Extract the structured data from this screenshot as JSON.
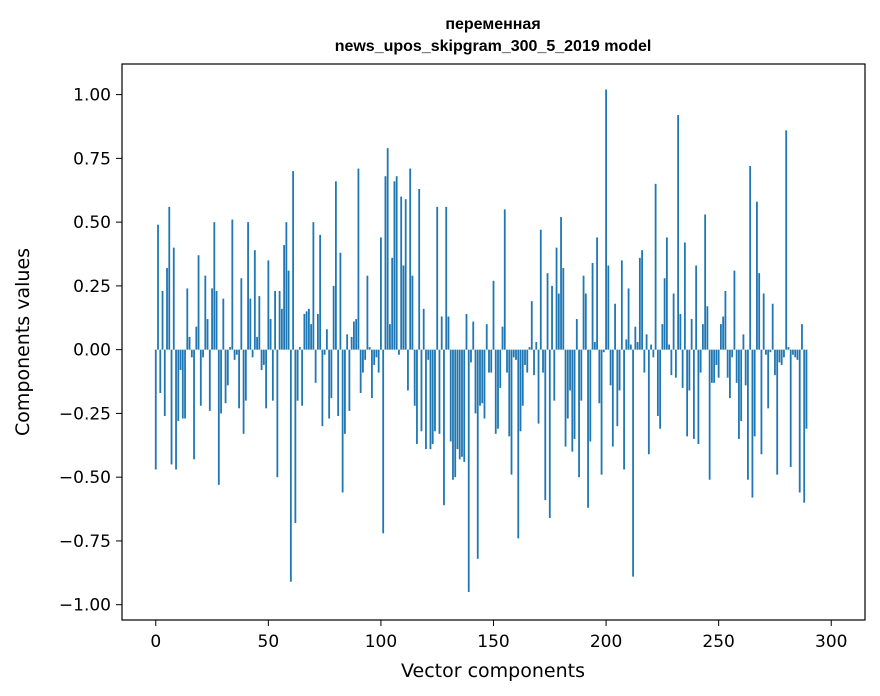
{
  "chart_data": {
    "type": "bar",
    "title": [
      "переменная",
      "news_upos_skipgram_300_5_2019 model"
    ],
    "xlabel": "Vector components",
    "ylabel": "Components values",
    "xlim": [
      -15,
      315
    ],
    "ylim": [
      -1.06,
      1.12
    ],
    "xticks": [
      0,
      50,
      100,
      150,
      200,
      250,
      300
    ],
    "xtick_labels": [
      "0",
      "50",
      "100",
      "150",
      "200",
      "250",
      "300"
    ],
    "yticks": [
      1.0,
      0.75,
      0.5,
      0.25,
      0.0,
      -0.25,
      -0.5,
      -0.75,
      -1.0
    ],
    "ytick_labels": [
      "1.00",
      "0.75",
      "0.50",
      "0.25",
      "0.00",
      "−0.25",
      "−0.50",
      "−0.75",
      "−1.00"
    ],
    "bar_color": "#1f77b4",
    "values": [
      -0.47,
      0.49,
      -0.17,
      0.23,
      -0.26,
      0.32,
      0.56,
      -0.45,
      0.4,
      -0.47,
      -0.28,
      -0.08,
      -0.27,
      -0.27,
      0.24,
      0.05,
      -0.03,
      -0.43,
      0.09,
      0.37,
      -0.22,
      -0.03,
      0.29,
      0.12,
      -0.24,
      0.24,
      0.5,
      0.23,
      -0.53,
      -0.25,
      0.2,
      -0.21,
      -0.14,
      0.01,
      0.51,
      -0.04,
      -0.02,
      -0.23,
      0.28,
      -0.33,
      -0.2,
      0.5,
      0.2,
      -0.03,
      0.39,
      0.05,
      0.21,
      -0.08,
      -0.06,
      -0.23,
      0.35,
      0.12,
      -0.2,
      0.23,
      -0.5,
      0.23,
      0.16,
      0.41,
      0.5,
      0.31,
      -0.91,
      0.7,
      -0.68,
      -0.2,
      0.01,
      -0.22,
      0.14,
      0.15,
      0.16,
      0.1,
      0.5,
      -0.13,
      0.14,
      0.45,
      -0.3,
      -0.02,
      0.08,
      -0.27,
      -0.19,
      0.25,
      0.66,
      -0.26,
      0.38,
      -0.56,
      -0.33,
      0.06,
      -0.24,
      0.05,
      0.11,
      0.12,
      0.71,
      -0.17,
      -0.09,
      -0.04,
      0.29,
      0.01,
      -0.19,
      -0.06,
      -0.03,
      -0.09,
      0.44,
      -0.72,
      0.68,
      0.79,
      0.1,
      0.36,
      0.66,
      0.68,
      -0.02,
      0.6,
      0.33,
      0.59,
      -0.16,
      0.71,
      0.29,
      -0.22,
      -0.37,
      0.63,
      -0.32,
      0.16,
      -0.39,
      -0.04,
      -0.39,
      -0.37,
      -0.32,
      0.56,
      -0.33,
      0.13,
      -0.61,
      0.56,
      0.13,
      -0.36,
      -0.51,
      -0.5,
      -0.39,
      -0.43,
      -0.42,
      -0.44,
      0.14,
      -0.95,
      -0.05,
      0.11,
      -0.25,
      -0.82,
      -0.22,
      -0.21,
      -0.27,
      0.1,
      -0.09,
      -0.09,
      0.27,
      -0.33,
      -0.31,
      -0.15,
      0.09,
      0.55,
      -0.09,
      -0.34,
      -0.49,
      -0.03,
      -0.04,
      -0.74,
      -0.32,
      -0.22,
      -0.06,
      -0.09,
      0.01,
      0.19,
      -0.1,
      0.03,
      -0.29,
      0.47,
      -0.09,
      -0.59,
      0.3,
      -0.66,
      0.25,
      -0.2,
      0.4,
      0.22,
      0.52,
      0.32,
      -0.38,
      -0.27,
      -0.16,
      -0.4,
      -0.35,
      0.12,
      -0.5,
      -0.2,
      0.29,
      0.22,
      -0.62,
      -0.36,
      0.34,
      0.03,
      0.44,
      -0.21,
      -0.49,
      -0.01,
      1.02,
      0.33,
      -0.14,
      -0.38,
      0.18,
      -0.3,
      -0.16,
      0.35,
      -0.47,
      0.04,
      0.24,
      0.02,
      -0.89,
      0.09,
      0.03,
      0.36,
      0.39,
      -0.09,
      0.06,
      -0.41,
      0.02,
      -0.03,
      0.65,
      -0.26,
      -0.31,
      0.1,
      0.28,
      0.44,
      0.02,
      -0.1,
      0.22,
      -0.11,
      0.92,
      0.14,
      -0.15,
      0.42,
      -0.34,
      -0.16,
      0.12,
      -0.35,
      0.33,
      -0.37,
      -0.09,
      0.1,
      0.53,
      0.17,
      -0.51,
      -0.13,
      -0.13,
      -0.06,
      -0.11,
      0.1,
      0.13,
      0.23,
      -0.11,
      -0.19,
      -0.03,
      0.31,
      -0.13,
      -0.35,
      -0.28,
      0.06,
      -0.14,
      -0.51,
      0.72,
      -0.58,
      -0.34,
      0.58,
      0.3,
      -0.41,
      0.22,
      -0.02,
      -0.23,
      -0.01,
      0.18,
      -0.1,
      -0.49,
      -0.05,
      -0.06,
      -0.03,
      0.86,
      0.01,
      -0.46,
      -0.02,
      -0.03,
      -0.04,
      -0.56,
      0.1,
      -0.6,
      -0.31
    ]
  }
}
